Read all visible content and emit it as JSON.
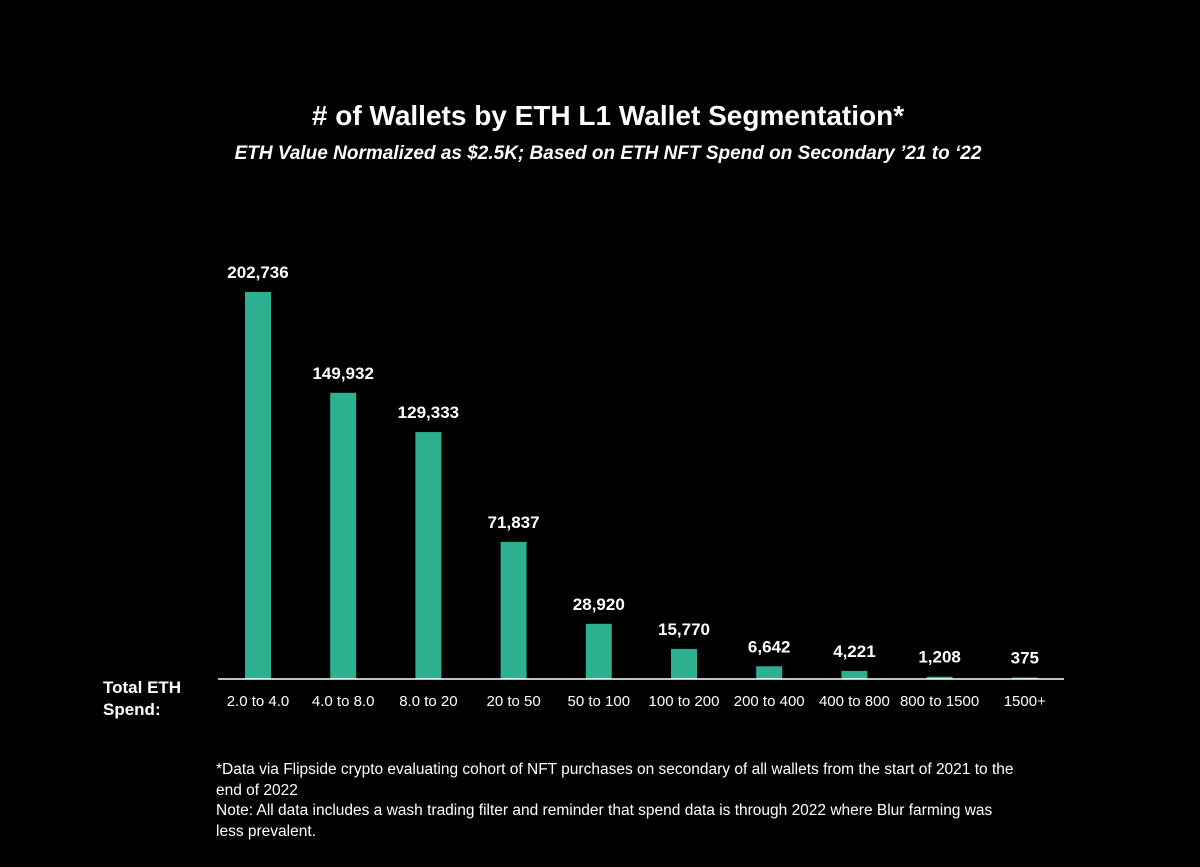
{
  "chart_data": {
    "type": "bar",
    "title": "# of Wallets by ETH L1 Wallet Segmentation*",
    "subtitle": "ETH Value Normalized as $2.5K; Based on ETH NFT Spend on Secondary ’21 to ‘22",
    "xlabel": "Total ETH Spend:",
    "ylabel": "",
    "categories": [
      "2.0 to 4.0",
      "4.0 to 8.0",
      "8.0 to 20",
      "20 to 50",
      "50 to 100",
      "100 to 200",
      "200 to 400",
      "400 to 800",
      "800 to 1500",
      "1500+"
    ],
    "values": [
      202736,
      149932,
      129333,
      71837,
      28920,
      15770,
      6642,
      4221,
      1208,
      375
    ],
    "value_labels": [
      "202,736",
      "149,932",
      "129,333",
      "71,837",
      "28,920",
      "15,770",
      "6,642",
      "4,221",
      "1,208",
      "375"
    ],
    "ylim": [
      0,
      202736
    ],
    "grid": false,
    "legend": "none",
    "bar_color": "#2db08f"
  },
  "footnote": {
    "line1": "*Data via Flipside crypto evaluating cohort of NFT purchases on secondary of all wallets from the start of 2021 to the end of 2022",
    "line2": "Note: All data includes a wash trading filter and reminder that spend data is through 2022 where Blur farming was less prevalent."
  }
}
